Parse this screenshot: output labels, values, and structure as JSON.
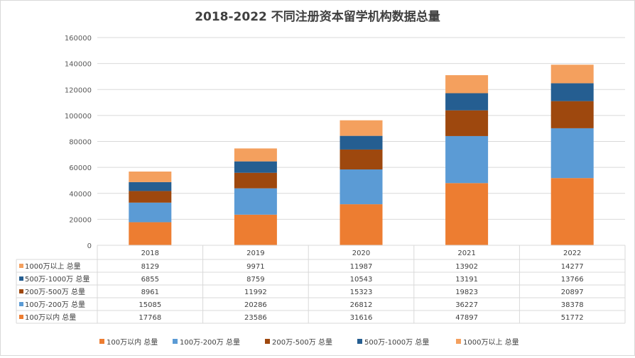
{
  "chart_data": {
    "type": "bar",
    "stacked": true,
    "title": "2018-2022 不同注册资本留学机构数据总量",
    "categories": [
      "2018",
      "2019",
      "2020",
      "2021",
      "2022"
    ],
    "ylim": [
      0,
      160000
    ],
    "yticks": [
      "0",
      "20000",
      "40000",
      "60000",
      "80000",
      "100000",
      "120000",
      "140000",
      "160000"
    ],
    "grid": true,
    "legend_position": "bottom",
    "data_table": true,
    "series": [
      {
        "name": "100万以内 总量",
        "color": "#ED7D31",
        "values": [
          17768,
          23586,
          31616,
          47897,
          51772
        ]
      },
      {
        "name": "100万-200万 总量",
        "color": "#5B9BD5",
        "values": [
          15085,
          20286,
          26812,
          36227,
          38378
        ]
      },
      {
        "name": "200万-500万 总量",
        "color": "#9E480E",
        "values": [
          8961,
          11992,
          15323,
          19823,
          20897
        ]
      },
      {
        "name": "500万-1000万 总量",
        "color": "#255E91",
        "values": [
          6855,
          8759,
          10543,
          13191,
          13766
        ]
      },
      {
        "name": "1000万以上 总量",
        "color": "#F4A05E",
        "values": [
          8129,
          9971,
          11987,
          13902,
          14277
        ]
      }
    ]
  }
}
